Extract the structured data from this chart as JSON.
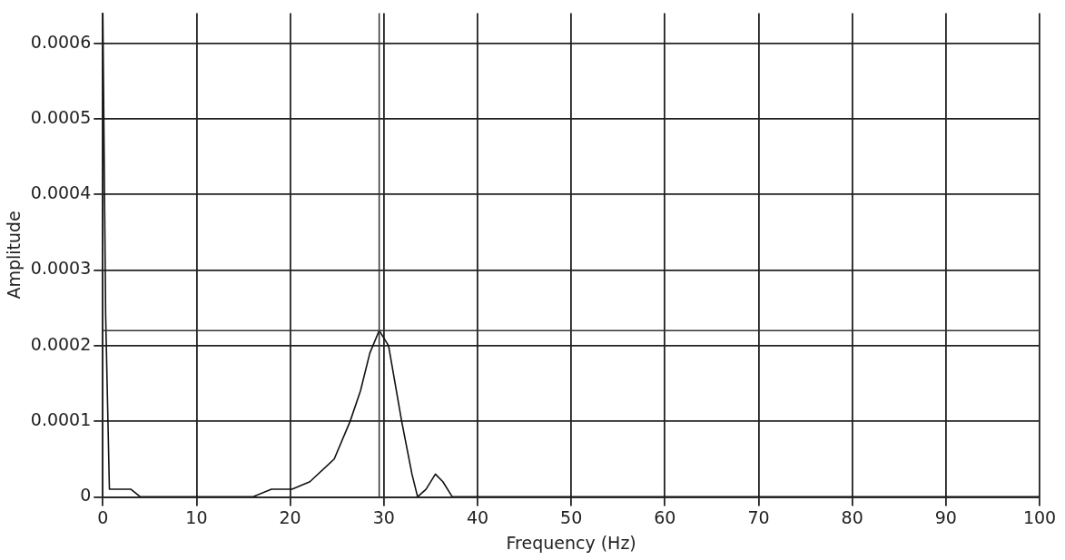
{
  "chart_data": {
    "type": "line",
    "xlabel": "Frequency (Hz)",
    "ylabel": "Amplitude",
    "x": [
      0,
      0.3,
      0.7,
      3,
      4,
      10,
      11,
      16,
      18,
      20.2,
      22.1,
      24.7,
      26.4,
      27.5,
      28.5,
      29.5,
      30.5,
      31.9,
      33,
      33.6,
      34.5,
      35.5,
      36.3,
      37.3,
      38,
      39,
      40,
      48,
      49,
      53,
      54,
      100
    ],
    "series": [
      {
        "color": "#111111",
        "values": [
          0.00064,
          0.00024,
          1e-05,
          1e-05,
          0,
          0,
          0,
          0,
          1e-05,
          1e-05,
          2e-05,
          5e-05,
          0.0001,
          0.00014,
          0.00019,
          0.00022,
          0.0002,
          0.0001,
          3e-05,
          0,
          1e-05,
          3e-05,
          2e-05,
          0,
          0,
          0,
          0,
          0,
          0,
          0,
          0,
          0
        ]
      }
    ],
    "xlim": [
      0,
      100
    ],
    "xticks": [
      0,
      10,
      20,
      30,
      40,
      50,
      60,
      70,
      80,
      90,
      100
    ],
    "ylim": [
      0,
      0.00064
    ],
    "yticks": [
      0,
      0.0001,
      0.0002,
      0.0003,
      0.0004,
      0.0005,
      0.0006
    ],
    "grid": true,
    "legend": false,
    "marker": "none",
    "line_style": "solid",
    "ref_lines": [
      {
        "axis": "x",
        "value": 29.5,
        "color": "#333333"
      },
      {
        "axis": "y",
        "value": 0.00022,
        "color": "#333333"
      }
    ]
  }
}
